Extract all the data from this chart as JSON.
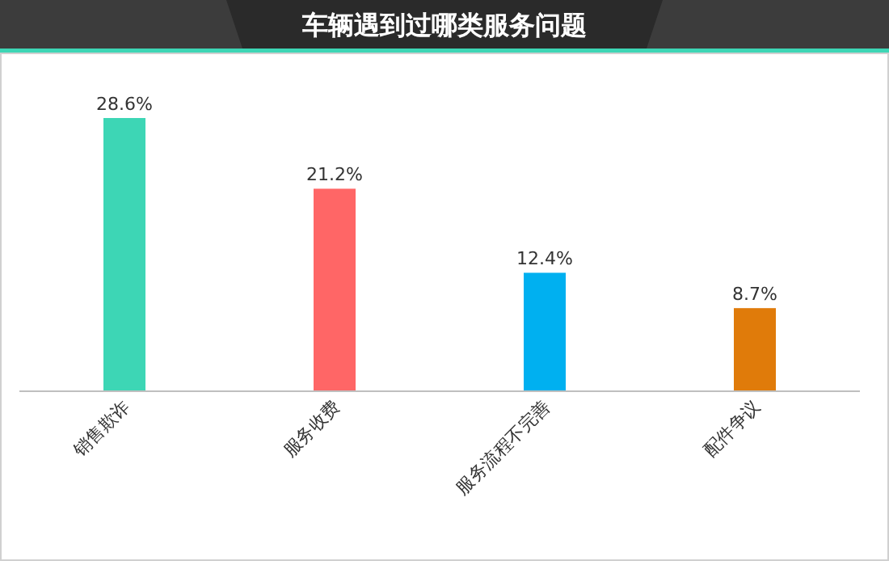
{
  "chart_data": {
    "type": "bar",
    "title": "车辆遇到过哪类服务问题",
    "categories": [
      "销售欺诈",
      "服务收费",
      "服务流程不完善",
      "配件争议"
    ],
    "values": [
      28.6,
      21.2,
      12.4,
      8.7
    ],
    "colors": [
      "#3dd6b5",
      "#ff6666",
      "#00b0f0",
      "#e07b0a"
    ],
    "value_labels": [
      "28.6%",
      "21.2%",
      "12.4%",
      "8.7%"
    ]
  }
}
